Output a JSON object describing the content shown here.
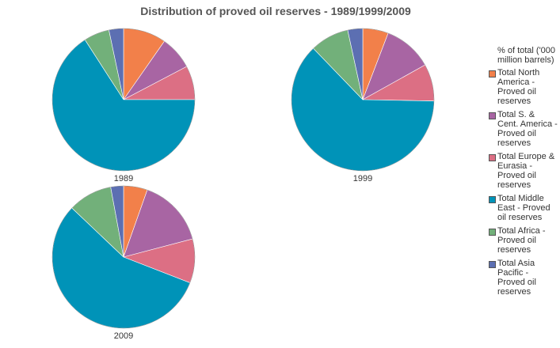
{
  "title": "Distribution of proved oil reserves - 1989/1999/2009",
  "legend_title": "% of total ('000 million barrels)",
  "categories": [
    "Total North America - Proved oil reserves",
    "Total S. & Cent. America - Proved oil reserves",
    "Total Europe & Eurasia - Proved oil reserves",
    "Total Middle East - Proved oil reserves",
    "Total Africa - Proved oil reserves",
    "Total Asia Pacific - Proved oil reserves"
  ],
  "colors": [
    "#f2804a",
    "#a865a3",
    "#dc6f84",
    "#0093b8",
    "#72b07a",
    "#5c6fb2"
  ],
  "chart_data": [
    {
      "type": "pie",
      "label": "1989",
      "values": [
        9.7,
        7.6,
        7.7,
        65.9,
        5.8,
        3.3
      ]
    },
    {
      "type": "pie",
      "label": "1999",
      "values": [
        5.8,
        11.1,
        8.4,
        62.5,
        8.8,
        3.4
      ]
    },
    {
      "type": "pie",
      "label": "2009",
      "values": [
        5.4,
        15.5,
        10.0,
        56.2,
        10.0,
        2.9
      ]
    }
  ]
}
